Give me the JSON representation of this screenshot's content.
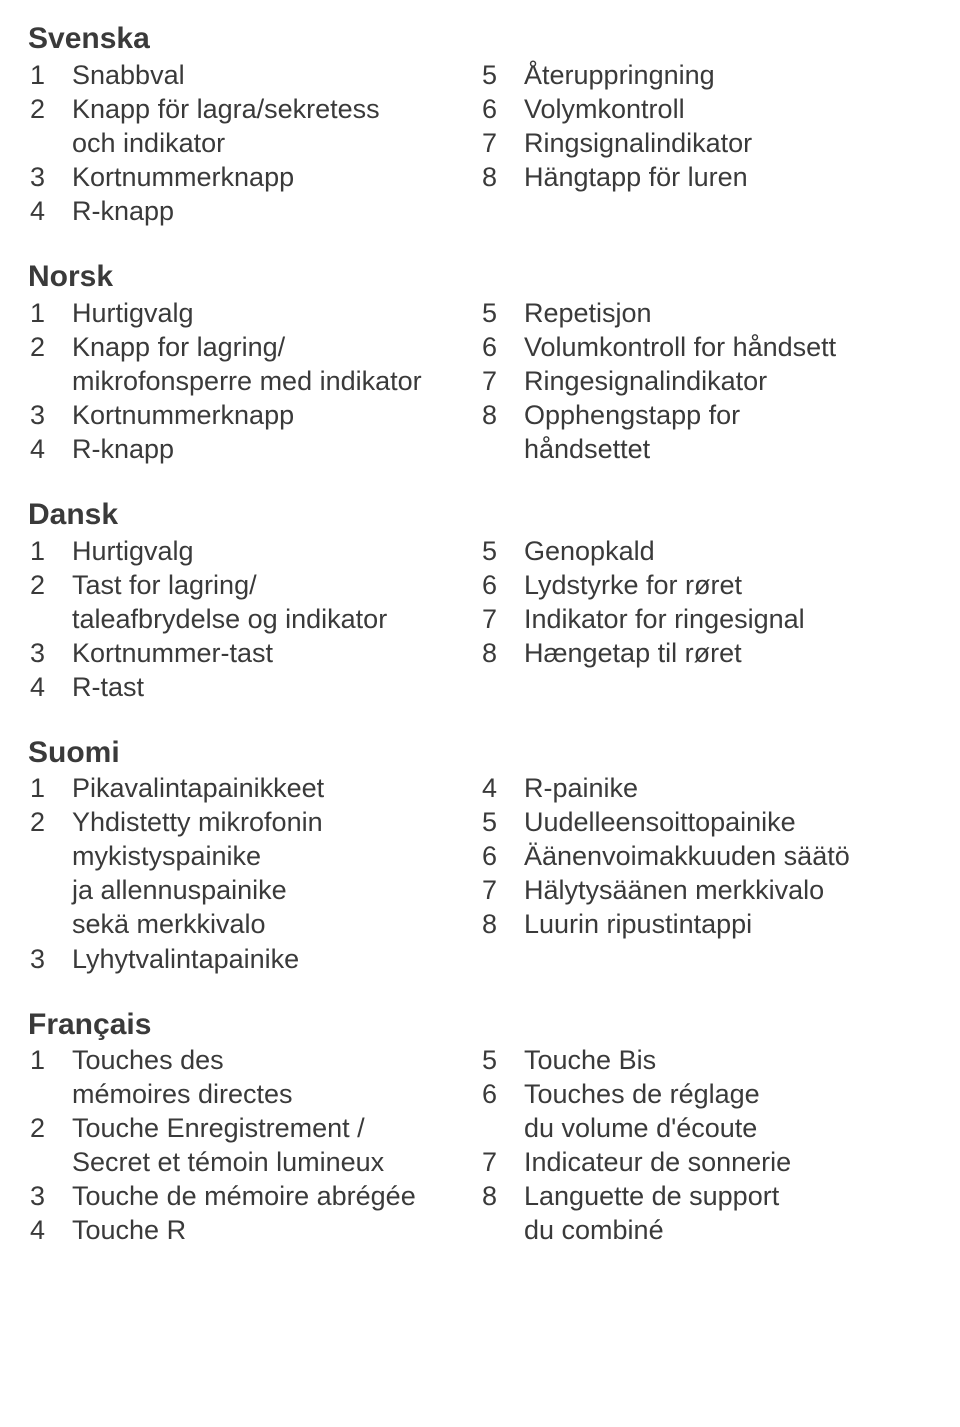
{
  "sections": [
    {
      "title": "Svenska",
      "left": [
        {
          "n": "1",
          "t": "Snabbval"
        },
        {
          "n": "2",
          "t": "Knapp för lagra/sekretess"
        },
        {
          "n": "",
          "t": "och indikator"
        },
        {
          "n": "3",
          "t": "Kortnummerknapp"
        },
        {
          "n": "4",
          "t": "R-knapp"
        }
      ],
      "right": [
        {
          "n": "5",
          "t": "Återuppringning"
        },
        {
          "n": "6",
          "t": "Volymkontroll"
        },
        {
          "n": "7",
          "t": "Ringsignalindikator"
        },
        {
          "n": "8",
          "t": "Hängtapp för luren"
        }
      ]
    },
    {
      "title": "Norsk",
      "left": [
        {
          "n": "1",
          "t": "Hurtigvalg"
        },
        {
          "n": "2",
          "t": "Knapp for lagring/"
        },
        {
          "n": "",
          "t": "mikrofonsperre med indikator"
        },
        {
          "n": "3",
          "t": "Kortnummerknapp"
        },
        {
          "n": "4",
          "t": "R-knapp"
        }
      ],
      "right": [
        {
          "n": "5",
          "t": "Repetisjon"
        },
        {
          "n": "6",
          "t": "Volumkontroll for håndsett"
        },
        {
          "n": "7",
          "t": "Ringesignalindikator"
        },
        {
          "n": "8",
          "t": "Opphengstapp for"
        },
        {
          "n": "",
          "t": "håndsettet"
        }
      ]
    },
    {
      "title": "Dansk",
      "left": [
        {
          "n": "1",
          "t": "Hurtigvalg"
        },
        {
          "n": "2",
          "t": "Tast for lagring/"
        },
        {
          "n": "",
          "t": "taleafbrydelse og indikator"
        },
        {
          "n": "3",
          "t": "Kortnummer-tast"
        },
        {
          "n": "4",
          "t": "R-tast"
        }
      ],
      "right": [
        {
          "n": "5",
          "t": "Genopkald"
        },
        {
          "n": "6",
          "t": "Lydstyrke for røret"
        },
        {
          "n": "7",
          "t": "Indikator for ringesignal"
        },
        {
          "n": "8",
          "t": "Hængetap til røret"
        }
      ]
    },
    {
      "title": "Suomi",
      "left": [
        {
          "n": "1",
          "t": "Pikavalintapainikkeet"
        },
        {
          "n": "2",
          "t": "Yhdistetty mikrofonin"
        },
        {
          "n": "",
          "t": "mykistyspainike"
        },
        {
          "n": "",
          "t": "ja allennuspainike"
        },
        {
          "n": "",
          "t": "sekä merkkivalo"
        },
        {
          "n": "3",
          "t": "Lyhytvalintapainike"
        }
      ],
      "right": [
        {
          "n": "4",
          "t": "R-painike"
        },
        {
          "n": "5",
          "t": "Uudelleensoittopainike"
        },
        {
          "n": "6",
          "t": "Äänenvoimakkuuden säätö"
        },
        {
          "n": "7",
          "t": "Hälytysäänen merkkivalo"
        },
        {
          "n": "8",
          "t": "Luurin ripustintappi"
        }
      ]
    },
    {
      "title": "Français",
      "left": [
        {
          "n": "1",
          "t": "Touches des"
        },
        {
          "n": "",
          "t": "mémoires directes"
        },
        {
          "n": "2",
          "t": "Touche Enregistrement /"
        },
        {
          "n": "",
          "t": "Secret et témoin lumineux"
        },
        {
          "n": "3",
          "t": "Touche de mémoire abrégée"
        },
        {
          "n": "4",
          "t": "Touche R"
        }
      ],
      "right": [
        {
          "n": "5",
          "t": "Touche Bis"
        },
        {
          "n": "6",
          "t": "Touches de réglage"
        },
        {
          "n": "",
          "t": "du volume d'écoute"
        },
        {
          "n": "7",
          "t": "Indicateur de sonnerie"
        },
        {
          "n": "8",
          "t": "Languette de support"
        },
        {
          "n": "",
          "t": "du combiné"
        }
      ]
    }
  ]
}
